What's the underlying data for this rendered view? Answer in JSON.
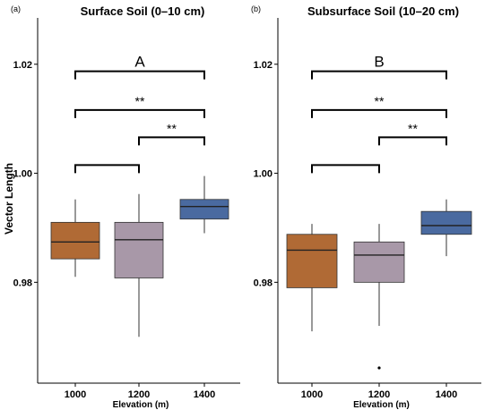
{
  "ylabel": "Vector Length",
  "colors": {
    "c1000": "#b06a35",
    "c1200": "#a898a8",
    "c1400": "#4a6aa0"
  },
  "chart_data": [
    {
      "type": "box",
      "tag": "(a)",
      "title": "Surface Soil (0–10 cm)",
      "xlabel": "Elevation (m)",
      "ylabel": "Vector Length",
      "categories": [
        "1000",
        "1200",
        "1400"
      ],
      "yticks": [
        "0.98",
        "1.00",
        "1.02"
      ],
      "ytick_values": [
        0.98,
        1.0,
        1.02
      ],
      "ylim": [
        0.9615,
        1.0285
      ],
      "boxes": [
        {
          "name": "1000",
          "min": 0.981,
          "q1": 0.9843,
          "median": 0.9874,
          "q3": 0.991,
          "max": 0.9952,
          "outliers": []
        },
        {
          "name": "1200",
          "min": 0.97,
          "q1": 0.9808,
          "median": 0.9878,
          "q3": 0.991,
          "max": 0.9962,
          "outliers": []
        },
        {
          "name": "1400",
          "min": 0.989,
          "q1": 0.9916,
          "median": 0.9939,
          "q3": 0.9952,
          "max": 0.9995,
          "outliers": []
        }
      ],
      "group_letter": "A",
      "brackets": [
        {
          "from": "1000",
          "to": "1400",
          "y": 1.0187,
          "label": ""
        },
        {
          "from": "1000",
          "to": "1400",
          "y": 1.0116,
          "label": "**"
        },
        {
          "from": "1200",
          "to": "1400",
          "y": 1.0066,
          "label": "**"
        },
        {
          "from": "1000",
          "to": "1200",
          "y": 1.0015,
          "label": ""
        }
      ]
    },
    {
      "type": "box",
      "tag": "(b)",
      "title": "Subsurface Soil (10–20 cm)",
      "xlabel": "Elevation (m)",
      "categories": [
        "1000",
        "1200",
        "1400"
      ],
      "yticks": [
        "0.98",
        "1.00",
        "1.02"
      ],
      "ytick_values": [
        0.98,
        1.0,
        1.02
      ],
      "ylim": [
        0.9615,
        1.0285
      ],
      "boxes": [
        {
          "name": "1000",
          "min": 0.971,
          "q1": 0.979,
          "median": 0.9859,
          "q3": 0.9888,
          "max": 0.9907,
          "outliers": []
        },
        {
          "name": "1200",
          "min": 0.972,
          "q1": 0.98,
          "median": 0.985,
          "q3": 0.9874,
          "max": 0.9907,
          "outliers": [
            0.9643
          ]
        },
        {
          "name": "1400",
          "min": 0.9848,
          "q1": 0.9888,
          "median": 0.9904,
          "q3": 0.993,
          "max": 0.9952,
          "outliers": []
        }
      ],
      "group_letter": "B",
      "brackets": [
        {
          "from": "1000",
          "to": "1400",
          "y": 1.0187,
          "label": ""
        },
        {
          "from": "1000",
          "to": "1400",
          "y": 1.0116,
          "label": "**"
        },
        {
          "from": "1200",
          "to": "1400",
          "y": 1.0066,
          "label": "**"
        },
        {
          "from": "1000",
          "to": "1200",
          "y": 1.0015,
          "label": ""
        }
      ]
    }
  ]
}
